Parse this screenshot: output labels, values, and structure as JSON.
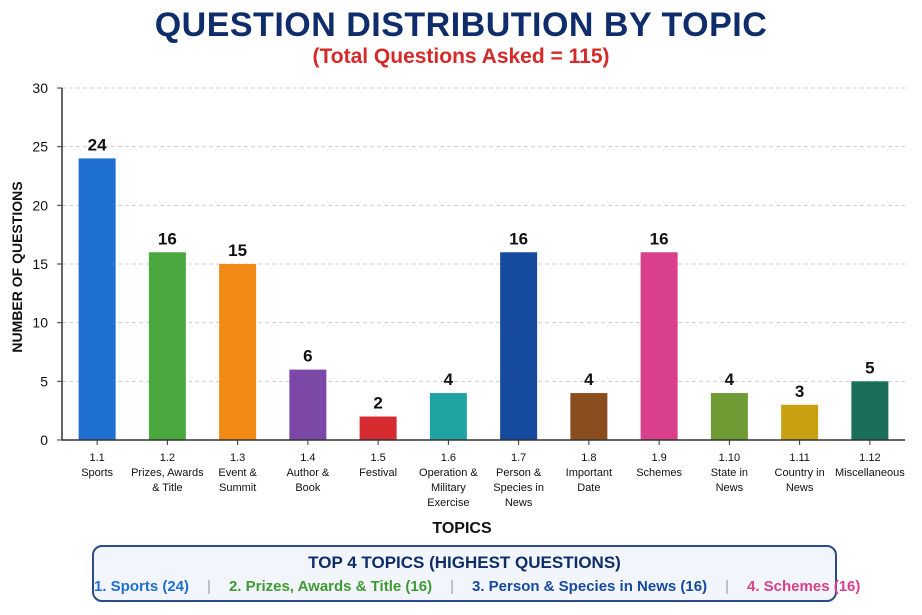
{
  "chart_data": {
    "type": "bar",
    "title": "QUESTION DISTRIBUTION BY TOPIC",
    "subtitle": "(Total Questions Asked = 115)",
    "xlabel": "TOPICS",
    "ylabel": "NUMBER OF QUESTIONS",
    "ylim": [
      0,
      30
    ],
    "yticks": [
      0,
      5,
      10,
      15,
      20,
      25,
      30
    ],
    "grid": true,
    "categories": [
      {
        "num": "1.1",
        "lines": [
          "Sports"
        ]
      },
      {
        "num": "1.2",
        "lines": [
          "Prizes, Awards",
          "& Title"
        ]
      },
      {
        "num": "1.3",
        "lines": [
          "Event &",
          "Summit"
        ]
      },
      {
        "num": "1.4",
        "lines": [
          "Author &",
          "Book"
        ]
      },
      {
        "num": "1.5",
        "lines": [
          "Festival"
        ]
      },
      {
        "num": "1.6",
        "lines": [
          "Operation &",
          "Military",
          "Exercise"
        ]
      },
      {
        "num": "1.7",
        "lines": [
          "Person &",
          "Species in",
          "News"
        ]
      },
      {
        "num": "1.8",
        "lines": [
          "Important",
          "Date"
        ]
      },
      {
        "num": "1.9",
        "lines": [
          "Schemes"
        ]
      },
      {
        "num": "1.10",
        "lines": [
          "State in",
          "News"
        ]
      },
      {
        "num": "1.11",
        "lines": [
          "Country in",
          "News"
        ]
      },
      {
        "num": "1.12",
        "lines": [
          "Miscellaneous"
        ]
      }
    ],
    "values": [
      24,
      16,
      15,
      6,
      2,
      4,
      16,
      4,
      16,
      4,
      3,
      5
    ],
    "colors": [
      "#1f6fd1",
      "#4aa83e",
      "#f08a14",
      "#7b48a8",
      "#d62b30",
      "#1fa3a3",
      "#154a9e",
      "#8a4e1e",
      "#d93f8a",
      "#6f9a34",
      "#c9a012",
      "#1b6e5a"
    ]
  },
  "summary": {
    "title": "TOP 4 TOPICS (HIGHEST QUESTIONS)",
    "items": [
      {
        "text": "1. Sports (24)",
        "color": "#1f6fd1"
      },
      {
        "text": "2. Prizes, Awards & Title (16)",
        "color": "#3f9a35"
      },
      {
        "text": "3. Person & Species in News (16)",
        "color": "#154a9e"
      },
      {
        "text": "4. Schemes (16)",
        "color": "#d93f8a"
      }
    ]
  }
}
